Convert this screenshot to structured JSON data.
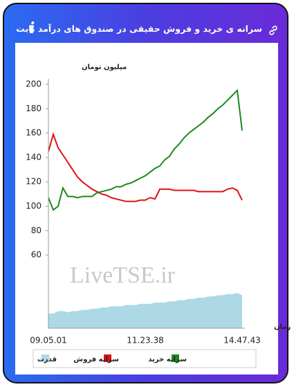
{
  "header": {
    "title": "سرانه ی خرید و فروش حقیقی در صندوق های درآمد ثابت"
  },
  "chart_data": {
    "type": "line",
    "y_label": "میلیون تومان",
    "x_label": "زمان",
    "watermark": "LiveTSE.ir",
    "categories": [
      "09.05.01",
      null,
      null,
      null,
      null,
      null,
      null,
      null,
      null,
      null,
      null,
      null,
      null,
      null,
      null,
      null,
      null,
      null,
      null,
      null,
      "11.23.38",
      null,
      null,
      null,
      null,
      null,
      null,
      null,
      null,
      null,
      null,
      null,
      null,
      null,
      null,
      null,
      null,
      null,
      null,
      null,
      "14.47.43"
    ],
    "ylim": [
      0,
      200
    ],
    "yticks": [
      60,
      80,
      100,
      120,
      140,
      160,
      180,
      200
    ],
    "series": [
      {
        "name": "قدرت",
        "kind": "area",
        "color": "#add8e6",
        "values": [
          12,
          12,
          14,
          14,
          13,
          14,
          14,
          15,
          15,
          16,
          16,
          17,
          17,
          18,
          18,
          18,
          19,
          19,
          19,
          20,
          20,
          20,
          21,
          21,
          21,
          22,
          22,
          23,
          23,
          24,
          24,
          25,
          25,
          26,
          26,
          27,
          27,
          28,
          28,
          29,
          27
        ]
      },
      {
        "name": "سرانه فروش",
        "kind": "line",
        "color": "#e01010",
        "values": [
          145,
          159,
          148,
          142,
          136,
          130,
          124,
          120,
          117,
          114,
          112,
          110,
          109,
          107,
          106,
          105,
          104,
          104,
          104,
          105,
          105,
          107,
          106,
          114,
          114,
          114,
          113,
          113,
          113,
          113,
          113,
          112,
          112,
          112,
          112,
          112,
          112,
          114,
          115,
          113,
          105
        ]
      },
      {
        "name": "سرانه خرید",
        "kind": "line",
        "color": "#1a8a1a",
        "values": [
          107,
          97,
          100,
          115,
          108,
          108,
          107,
          108,
          108,
          108,
          111,
          112,
          113,
          114,
          116,
          116,
          118,
          119,
          121,
          123,
          125,
          128,
          131,
          133,
          138,
          141,
          147,
          151,
          156,
          160,
          163,
          166,
          169,
          173,
          176,
          180,
          183,
          187,
          191,
          195,
          162
        ]
      }
    ]
  }
}
